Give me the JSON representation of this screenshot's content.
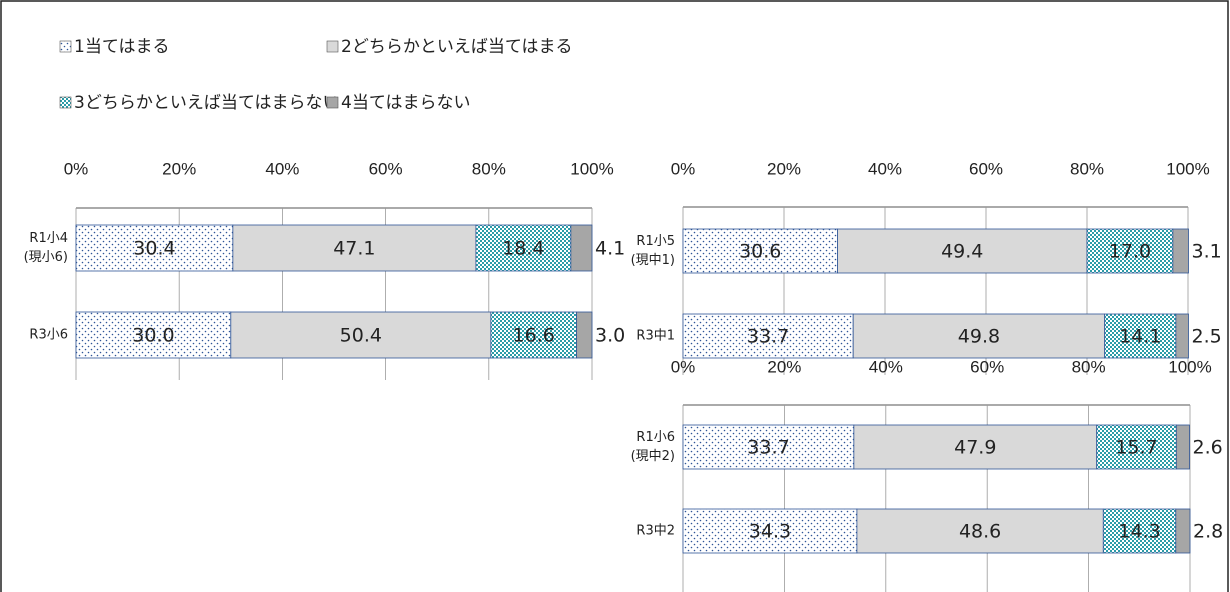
{
  "chart_data": [
    {
      "type": "stacked-bar",
      "categories": [
        [
          "R1小4",
          "(現小6)"
        ],
        [
          "R3小6"
        ]
      ],
      "xlim": [
        0,
        100
      ],
      "xticks": [
        {
          "value": 0,
          "label": "0%"
        },
        {
          "value": 20,
          "label": "20%"
        },
        {
          "value": 40,
          "label": "40%"
        },
        {
          "value": 60,
          "label": "60%"
        },
        {
          "value": 80,
          "label": "80%"
        },
        {
          "value": 100,
          "label": "100%"
        }
      ],
      "series": [
        {
          "name": "1当てはまる",
          "color": "#2f5597",
          "pattern": "dots",
          "values": [
            30.4,
            30.0
          ],
          "value_labels": [
            "30.4",
            "30.0"
          ]
        },
        {
          "name": "2どちらかといえば当てはまる",
          "color": "#d9d9d9",
          "values": [
            47.1,
            50.4
          ],
          "value_labels": [
            "47.1",
            "50.4"
          ]
        },
        {
          "name": "3どちらかといえば当てはまらない",
          "color": "#2b9ca8",
          "pattern": "checker",
          "values": [
            18.4,
            16.6
          ],
          "value_labels": [
            "18.4",
            "16.6"
          ]
        },
        {
          "name": "4当てはまらない",
          "color": "#a6a6a6",
          "values": [
            4.1,
            3.0
          ],
          "value_labels": [
            "4.1",
            "3.0"
          ]
        }
      ]
    },
    {
      "type": "stacked-bar",
      "categories": [
        [
          "R1小5",
          "(現中1)"
        ],
        [
          "R3中1"
        ]
      ],
      "xlim": [
        0,
        100
      ],
      "xticks": [
        {
          "value": 0,
          "label": "0%"
        },
        {
          "value": 20,
          "label": "20%"
        },
        {
          "value": 40,
          "label": "40%"
        },
        {
          "value": 60,
          "label": "60%"
        },
        {
          "value": 80,
          "label": "80%"
        },
        {
          "value": 100,
          "label": "100%"
        }
      ],
      "series": [
        {
          "color": "#2f5597",
          "pattern": "dots",
          "values": [
            30.6,
            33.7
          ],
          "value_labels": [
            "30.6",
            "33.7"
          ]
        },
        {
          "color": "#d9d9d9",
          "values": [
            49.4,
            49.8
          ],
          "value_labels": [
            "49.4",
            "49.8"
          ]
        },
        {
          "color": "#2b9ca8",
          "pattern": "checker",
          "values": [
            17.0,
            14.1
          ],
          "value_labels": [
            "17.0",
            "14.1"
          ]
        },
        {
          "color": "#a6a6a6",
          "values": [
            3.1,
            2.5
          ],
          "value_labels": [
            "3.1",
            "2.5"
          ]
        }
      ]
    },
    {
      "type": "stacked-bar",
      "categories": [
        [
          "R1小6",
          "(現中2)"
        ],
        [
          "R3中2"
        ]
      ],
      "xlim": [
        0,
        100
      ],
      "xticks": [
        {
          "value": 0,
          "label": "0%"
        },
        {
          "value": 20,
          "label": "20%"
        },
        {
          "value": 40,
          "label": "40%"
        },
        {
          "value": 60,
          "label": "60%"
        },
        {
          "value": 80,
          "label": "80%"
        },
        {
          "value": 100,
          "label": "100%"
        }
      ],
      "series": [
        {
          "color": "#2f5597",
          "pattern": "dots",
          "values": [
            33.7,
            34.3
          ],
          "value_labels": [
            "33.7",
            "34.3"
          ]
        },
        {
          "color": "#d9d9d9",
          "values": [
            47.9,
            48.6
          ],
          "value_labels": [
            "47.9",
            "48.6"
          ]
        },
        {
          "color": "#2b9ca8",
          "pattern": "checker",
          "values": [
            15.7,
            14.3
          ],
          "value_labels": [
            "15.7",
            "14.3"
          ]
        },
        {
          "color": "#a6a6a6",
          "values": [
            2.6,
            2.8
          ],
          "value_labels": [
            "2.6",
            "2.8"
          ]
        }
      ]
    }
  ]
}
